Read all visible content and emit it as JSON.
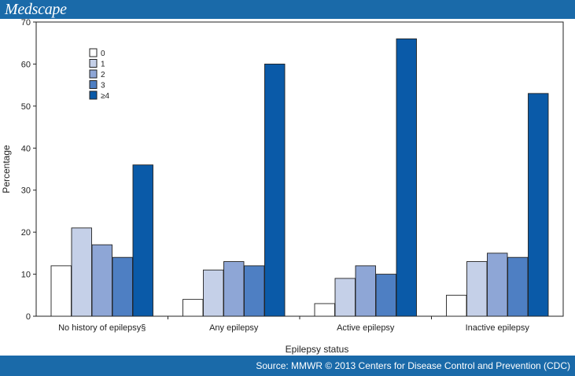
{
  "header": {
    "brand": "Medscape"
  },
  "footer": {
    "source": "Source: MMWR © 2013 Centers for Disease Control and Prevention (CDC)"
  },
  "chart_data": {
    "type": "bar",
    "title": "",
    "xlabel": "Epilepsy status",
    "ylabel": "Percentage",
    "ylim": [
      0,
      70
    ],
    "yticks": [
      0,
      10,
      20,
      30,
      40,
      50,
      60,
      70
    ],
    "grid": false,
    "legend_position": "top-left",
    "categories": [
      "No history of epilepsy§",
      "Any epilepsy",
      "Active epilepsy",
      "Inactive epilepsy"
    ],
    "series": [
      {
        "name": "0",
        "color": "#ffffff",
        "values": [
          12,
          4,
          3,
          5
        ]
      },
      {
        "name": "1",
        "color": "#c5d0e8",
        "values": [
          21,
          11,
          9,
          13
        ]
      },
      {
        "name": "2",
        "color": "#8ea6d6",
        "values": [
          17,
          13,
          12,
          15
        ]
      },
      {
        "name": "3",
        "color": "#4e7fc3",
        "values": [
          14,
          12,
          10,
          14
        ]
      },
      {
        "name": "≥4",
        "color": "#0a5aa8",
        "values": [
          36,
          60,
          66,
          53
        ]
      }
    ]
  }
}
